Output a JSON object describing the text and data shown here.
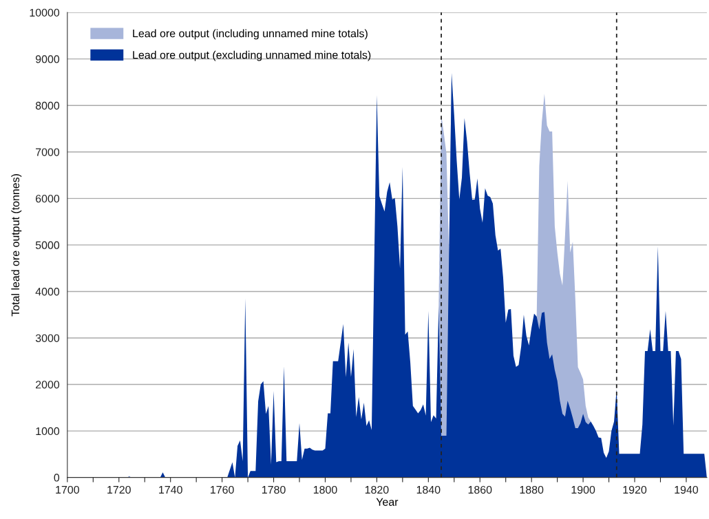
{
  "chart_data": {
    "type": "area",
    "xlabel": "Year",
    "ylabel": "Total lead ore output (tonnes)",
    "xlim": [
      1700,
      1948
    ],
    "ylim": [
      0,
      10000
    ],
    "xticks": [
      1700,
      {
        "value": 1710,
        "label": null
      },
      1720,
      {
        "value": 1730,
        "label": null
      },
      1740,
      {
        "value": 1750,
        "label": null
      },
      1760,
      {
        "value": 1770,
        "label": null
      },
      1780,
      {
        "value": 1790,
        "label": null
      },
      1800,
      {
        "value": 1810,
        "label": null
      },
      1820,
      {
        "value": 1830,
        "label": null
      },
      1840,
      {
        "value": 1850,
        "label": null
      },
      1860,
      {
        "value": 1870,
        "label": null
      },
      1880,
      {
        "value": 1890,
        "label": null
      },
      1900,
      {
        "value": 1910,
        "label": null
      },
      1920,
      {
        "value": 1930,
        "label": null
      },
      1940
    ],
    "yticks": [
      0,
      1000,
      2000,
      3000,
      4000,
      5000,
      6000,
      7000,
      8000,
      9000,
      10000
    ],
    "grid": "y",
    "legend": "top left",
    "ref_lines": [
      {
        "axis": "x",
        "value": 1845,
        "color": "#222222",
        "line_style": "dashed"
      },
      {
        "axis": "x",
        "value": 1913,
        "color": "#222222",
        "line_style": "dashed"
      }
    ],
    "series": [
      {
        "name": "Lead ore output (including unnamed mine totals)",
        "color": "#a7b5da",
        "x": [
          1844,
          1845,
          1846,
          1847,
          1848,
          1849,
          1865,
          1881,
          1882,
          1883,
          1884,
          1885,
          1886,
          1887,
          1888,
          1889,
          1890,
          1891,
          1892,
          1893,
          1894,
          1895,
          1896,
          1897,
          1898,
          1899,
          1900,
          1901,
          1902,
          1903
        ],
        "values": [
          3670,
          7800,
          7400,
          6970,
          4800,
          8700,
          null,
          3520,
          3460,
          6700,
          7650,
          8250,
          7570,
          7440,
          7440,
          5400,
          4840,
          4380,
          4130,
          5200,
          6380,
          4840,
          5070,
          3820,
          2370,
          2250,
          2110,
          1540,
          1290,
          1200
        ]
      },
      {
        "name": "Lead ore output (excluding unnamed mine totals)",
        "color": "#00339a",
        "x": [
          1700,
          1723,
          1724,
          1725,
          1736,
          1737,
          1738,
          1762,
          1764,
          1765,
          1766,
          1767,
          1768,
          1769,
          1770,
          1771,
          1773,
          1774,
          1775,
          1776,
          1777,
          1778,
          1779,
          1780,
          1781,
          1782,
          1783,
          1784,
          1785,
          1789,
          1790,
          1791,
          1792,
          1793,
          1794,
          1795,
          1796,
          1799,
          1800,
          1801,
          1802,
          1803,
          1805,
          1806,
          1807,
          1808,
          1809,
          1810,
          1811,
          1812,
          1813,
          1814,
          1815,
          1816,
          1817,
          1818,
          1819,
          1820,
          1821,
          1822,
          1823,
          1824,
          1825,
          1826,
          1827,
          1828,
          1829,
          1830,
          1831,
          1832,
          1833,
          1834,
          1835,
          1836,
          1837,
          1838,
          1839,
          1840,
          1841,
          1842,
          1843,
          1844,
          1845,
          1846,
          1847,
          1848,
          1849,
          1850,
          1851,
          1852,
          1853,
          1854,
          1855,
          1856,
          1857,
          1858,
          1859,
          1860,
          1861,
          1862,
          1863,
          1864,
          1865,
          1866,
          1867,
          1868,
          1869,
          1870,
          1871,
          1872,
          1873,
          1874,
          1875,
          1876,
          1877,
          1878,
          1879,
          1880,
          1881,
          1882,
          1883,
          1884,
          1885,
          1886,
          1887,
          1888,
          1889,
          1890,
          1891,
          1892,
          1893,
          1894,
          1895,
          1896,
          1897,
          1898,
          1899,
          1900,
          1901,
          1902,
          1903,
          1904,
          1905,
          1906,
          1907,
          1908,
          1909,
          1910,
          1911,
          1912,
          1913,
          1914,
          1922,
          1923,
          1924,
          1925,
          1926,
          1927,
          1928,
          1929,
          1930,
          1931,
          1932,
          1933,
          1934,
          1935,
          1936,
          1937,
          1938,
          1939,
          1947,
          1948
        ],
        "values": [
          0,
          0,
          20,
          0,
          0,
          110,
          0,
          0,
          330,
          0,
          680,
          800,
          350,
          3850,
          0,
          140,
          140,
          1640,
          2000,
          2070,
          1370,
          1540,
          280,
          1860,
          330,
          350,
          350,
          2390,
          350,
          350,
          1170,
          380,
          620,
          620,
          640,
          600,
          580,
          580,
          620,
          1380,
          1380,
          2500,
          2500,
          2900,
          3300,
          2160,
          2900,
          2160,
          2760,
          1300,
          1730,
          1250,
          1610,
          1110,
          1230,
          1020,
          4600,
          8220,
          6050,
          5880,
          5720,
          6140,
          6350,
          5980,
          6010,
          5400,
          4500,
          6680,
          3070,
          3140,
          2470,
          1540,
          1460,
          1380,
          1450,
          1570,
          1330,
          3580,
          1190,
          1340,
          1270,
          3670,
          900,
          900,
          900,
          4800,
          8700,
          7800,
          6800,
          5980,
          6450,
          7730,
          7230,
          6550,
          5970,
          5980,
          6430,
          5780,
          5480,
          6220,
          6060,
          6030,
          5890,
          5210,
          4880,
          4920,
          4300,
          3330,
          3610,
          3620,
          2620,
          2380,
          2420,
          2820,
          3500,
          3050,
          2840,
          3220,
          3520,
          3460,
          3180,
          3540,
          3560,
          2900,
          2550,
          2650,
          2310,
          2080,
          1650,
          1370,
          1310,
          1650,
          1480,
          1280,
          1060,
          1060,
          1170,
          1370,
          1190,
          1140,
          1200,
          1110,
          1000,
          860,
          850,
          530,
          420,
          560,
          1000,
          1200,
          1900,
          510,
          510,
          1140,
          2720,
          2720,
          3190,
          2720,
          2720,
          4970,
          2720,
          2720,
          3580,
          2720,
          2720,
          1120,
          2720,
          2720,
          2550,
          510,
          510,
          0
        ]
      }
    ]
  }
}
